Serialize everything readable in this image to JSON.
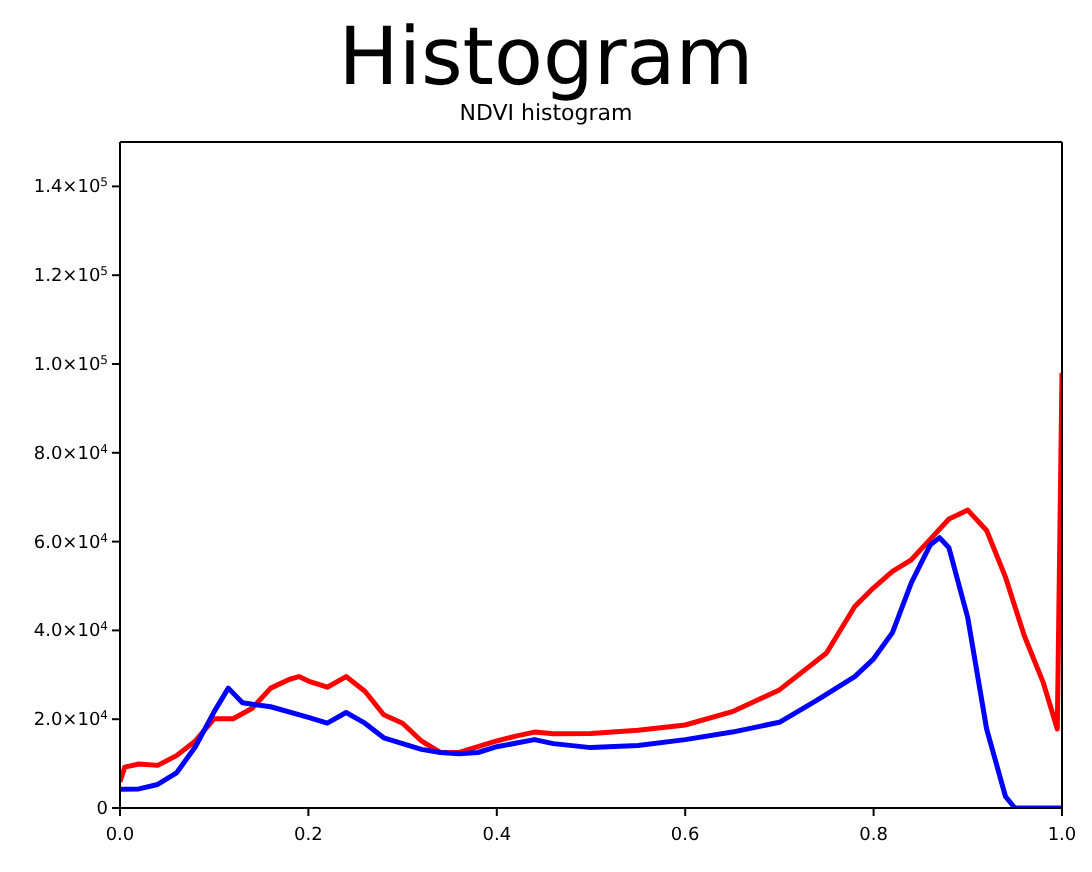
{
  "chart_data": {
    "type": "line",
    "title": "Histogram",
    "subtitle": "NDVI histogram",
    "xlim": [
      0,
      1
    ],
    "xticks": [
      {
        "value": 0,
        "label": "0.0"
      },
      {
        "value": 0.2,
        "label": "0.2"
      },
      {
        "value": 0.4,
        "label": "0.4"
      },
      {
        "value": 0.6,
        "label": "0.6"
      },
      {
        "value": 0.8,
        "label": "0.8"
      },
      {
        "value": 1,
        "label": "1.0"
      }
    ],
    "ylim": [
      0,
      150000
    ],
    "yticks": [
      0,
      {
        "value": 20000,
        "label": "2.0×10$^{4}$"
      },
      {
        "value": 40000,
        "label": "4.0×10$^{4}$"
      },
      {
        "value": 60000,
        "label": "6.0×10$^{4}$"
      },
      {
        "value": 80000,
        "label": "8.0×10$^{4}$"
      },
      {
        "value": 100000,
        "label": "1.0×10$^{5}$"
      },
      {
        "value": 120000,
        "label": "1.2×10$^{5}$"
      },
      {
        "value": 140000,
        "label": "1.4×10$^{5}$"
      }
    ],
    "legend": false,
    "marker": "none",
    "line_style": "solid",
    "series": [
      {
        "color": "#ff0000",
        "x": [
          0,
          0.005,
          0.02,
          0.04,
          0.06,
          0.08,
          0.1,
          0.12,
          0.14,
          0.16,
          0.18,
          0.19,
          0.2,
          0.22,
          0.24,
          0.26,
          0.28,
          0.3,
          0.32,
          0.34,
          0.36,
          0.38,
          0.4,
          0.42,
          0.44,
          0.46,
          0.5,
          0.55,
          0.6,
          0.65,
          0.7,
          0.75,
          0.78,
          0.8,
          0.82,
          0.84,
          0.86,
          0.88,
          0.9,
          0.92,
          0.94,
          0.96,
          0.98,
          0.995,
          1
        ],
        "values": [
          5900,
          9200,
          9900,
          9600,
          11800,
          15100,
          20100,
          20100,
          22400,
          27000,
          29000,
          29600,
          28600,
          27200,
          29600,
          26300,
          21000,
          19100,
          15100,
          12500,
          12500,
          13800,
          15100,
          16200,
          17100,
          16700,
          16800,
          17500,
          18700,
          21700,
          26600,
          34900,
          45400,
          49600,
          53300,
          55900,
          60500,
          65100,
          67100,
          62500,
          52000,
          38800,
          28300,
          17800,
          98000
        ]
      },
      {
        "color": "#0000ff",
        "x": [
          0,
          0.02,
          0.04,
          0.06,
          0.08,
          0.1,
          0.115,
          0.13,
          0.16,
          0.2,
          0.22,
          0.24,
          0.26,
          0.28,
          0.3,
          0.32,
          0.34,
          0.36,
          0.38,
          0.4,
          0.44,
          0.46,
          0.5,
          0.55,
          0.6,
          0.65,
          0.7,
          0.74,
          0.78,
          0.8,
          0.82,
          0.84,
          0.86,
          0.87,
          0.88,
          0.9,
          0.92,
          0.94,
          0.95,
          1
        ],
        "values": [
          4200,
          4300,
          5300,
          7900,
          13800,
          21700,
          27000,
          23700,
          22800,
          20400,
          19100,
          21500,
          19100,
          15800,
          14500,
          13200,
          12500,
          12200,
          12500,
          13800,
          15400,
          14500,
          13600,
          14100,
          15400,
          17100,
          19300,
          24300,
          29600,
          33600,
          39500,
          50700,
          59200,
          60900,
          58600,
          42800,
          17800,
          2600,
          0,
          0
        ]
      }
    ]
  }
}
